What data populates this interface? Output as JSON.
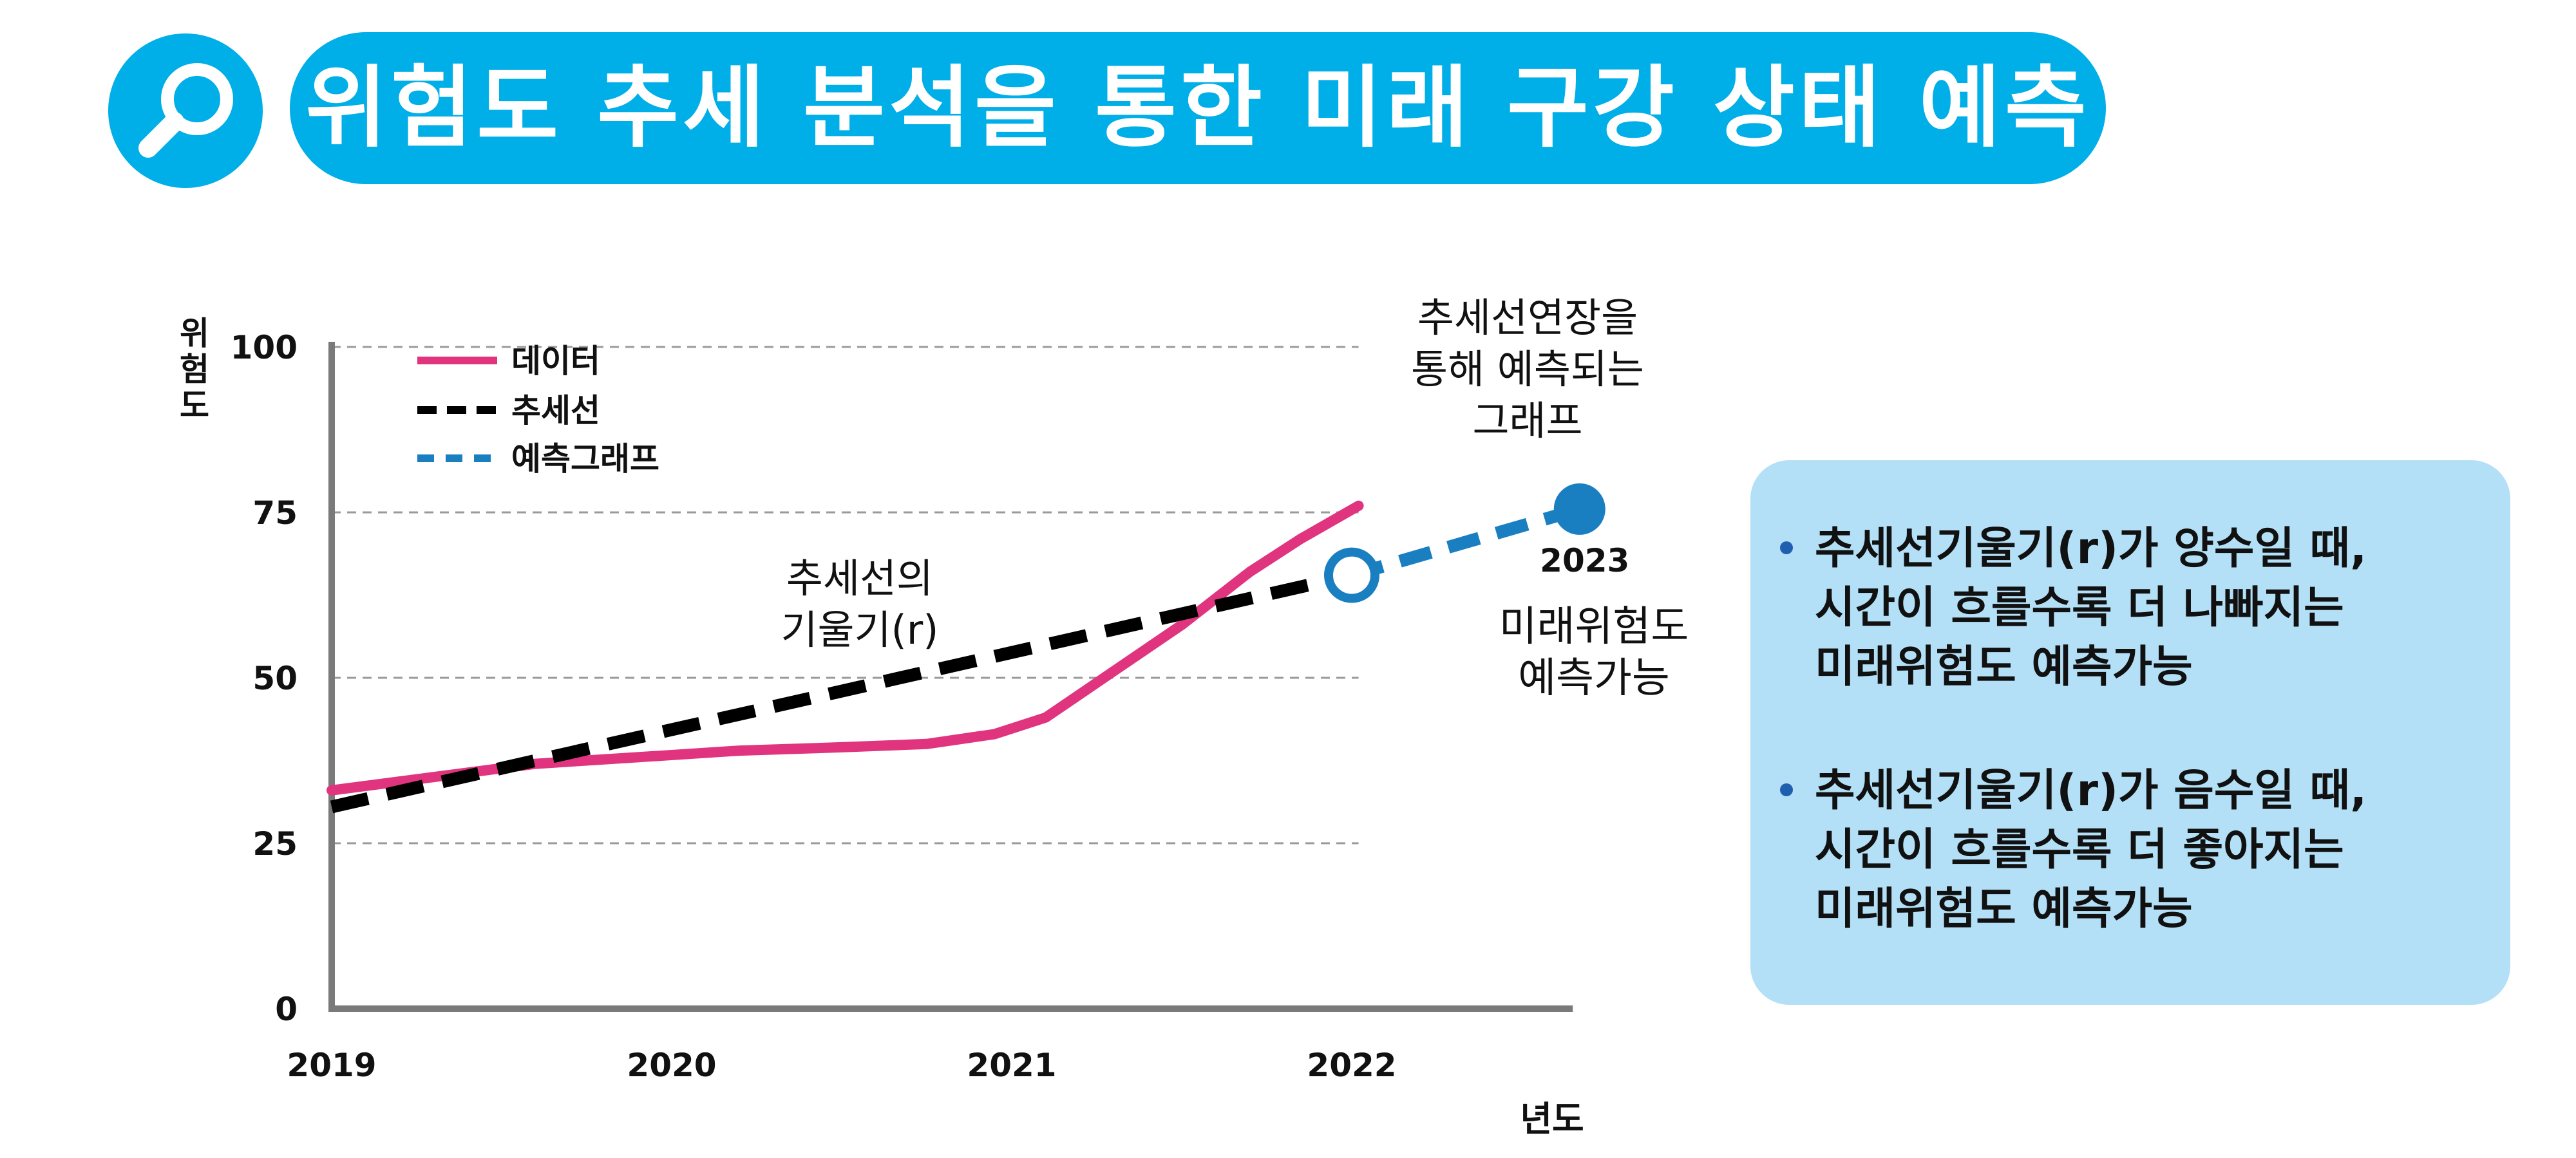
{
  "header": {
    "title": "위험도 추세 분석을 통한 미래 구강 상태 예측",
    "icon": "search-icon",
    "accent_color": "#00aee8"
  },
  "chart_data": {
    "type": "line",
    "title": "",
    "xlabel": "년도",
    "ylabel": "위험도",
    "ylim": [
      0,
      100
    ],
    "xlim": [
      2019,
      2022.65
    ],
    "x_ticks": [
      "2019",
      "2020",
      "2021",
      "2022"
    ],
    "y_ticks": [
      "0",
      "25",
      "50",
      "75",
      "100"
    ],
    "grid": "horizontal dashed",
    "legend_position": "top-left",
    "series": [
      {
        "name": "데이터",
        "color": "#e0347f",
        "style": "solid",
        "x": [
          2019,
          2019.3,
          2019.6,
          2019.9,
          2020.2,
          2020.5,
          2020.75,
          2020.95,
          2021.1,
          2021.3,
          2021.5,
          2021.7,
          2021.85,
          2022.02
        ],
        "y": [
          33,
          35,
          37,
          38,
          39,
          39.5,
          40,
          41.5,
          44,
          51,
          58,
          66,
          71,
          76
        ]
      },
      {
        "name": "추세선",
        "color": "#000000",
        "style": "dashed",
        "x": [
          2019,
          2022
        ],
        "y": [
          30.5,
          65.5
        ]
      },
      {
        "name": "예측그래프",
        "color": "#1a7fc1",
        "style": "dashed",
        "x": [
          2022,
          2022.67
        ],
        "y": [
          65.5,
          75.5
        ]
      }
    ],
    "markers": [
      {
        "type": "open-circle",
        "x": 2022,
        "y": 65.5,
        "color": "#1a7fc1"
      },
      {
        "type": "filled-circle",
        "x": 2022.67,
        "y": 75.5,
        "color": "#1a7fc1"
      }
    ],
    "annotations": {
      "slope": [
        "추세선의",
        "기울기(r)"
      ],
      "extension": [
        "추세선연장을",
        "통해 예측되는",
        "그래프"
      ],
      "forecast_year": "2023",
      "forecast": [
        "미래위험도",
        "예측가능"
      ]
    }
  },
  "info_box": {
    "bullets": [
      [
        "추세선기울기(r)가 양수일 때,",
        "시간이 흐를수록 더 나빠지는",
        "미래위험도 예측가능"
      ],
      [
        "추세선기울기(r)가 음수일 때,",
        "시간이 흐를수록 더 좋아지는",
        "미래위험도 예측가능"
      ]
    ]
  }
}
